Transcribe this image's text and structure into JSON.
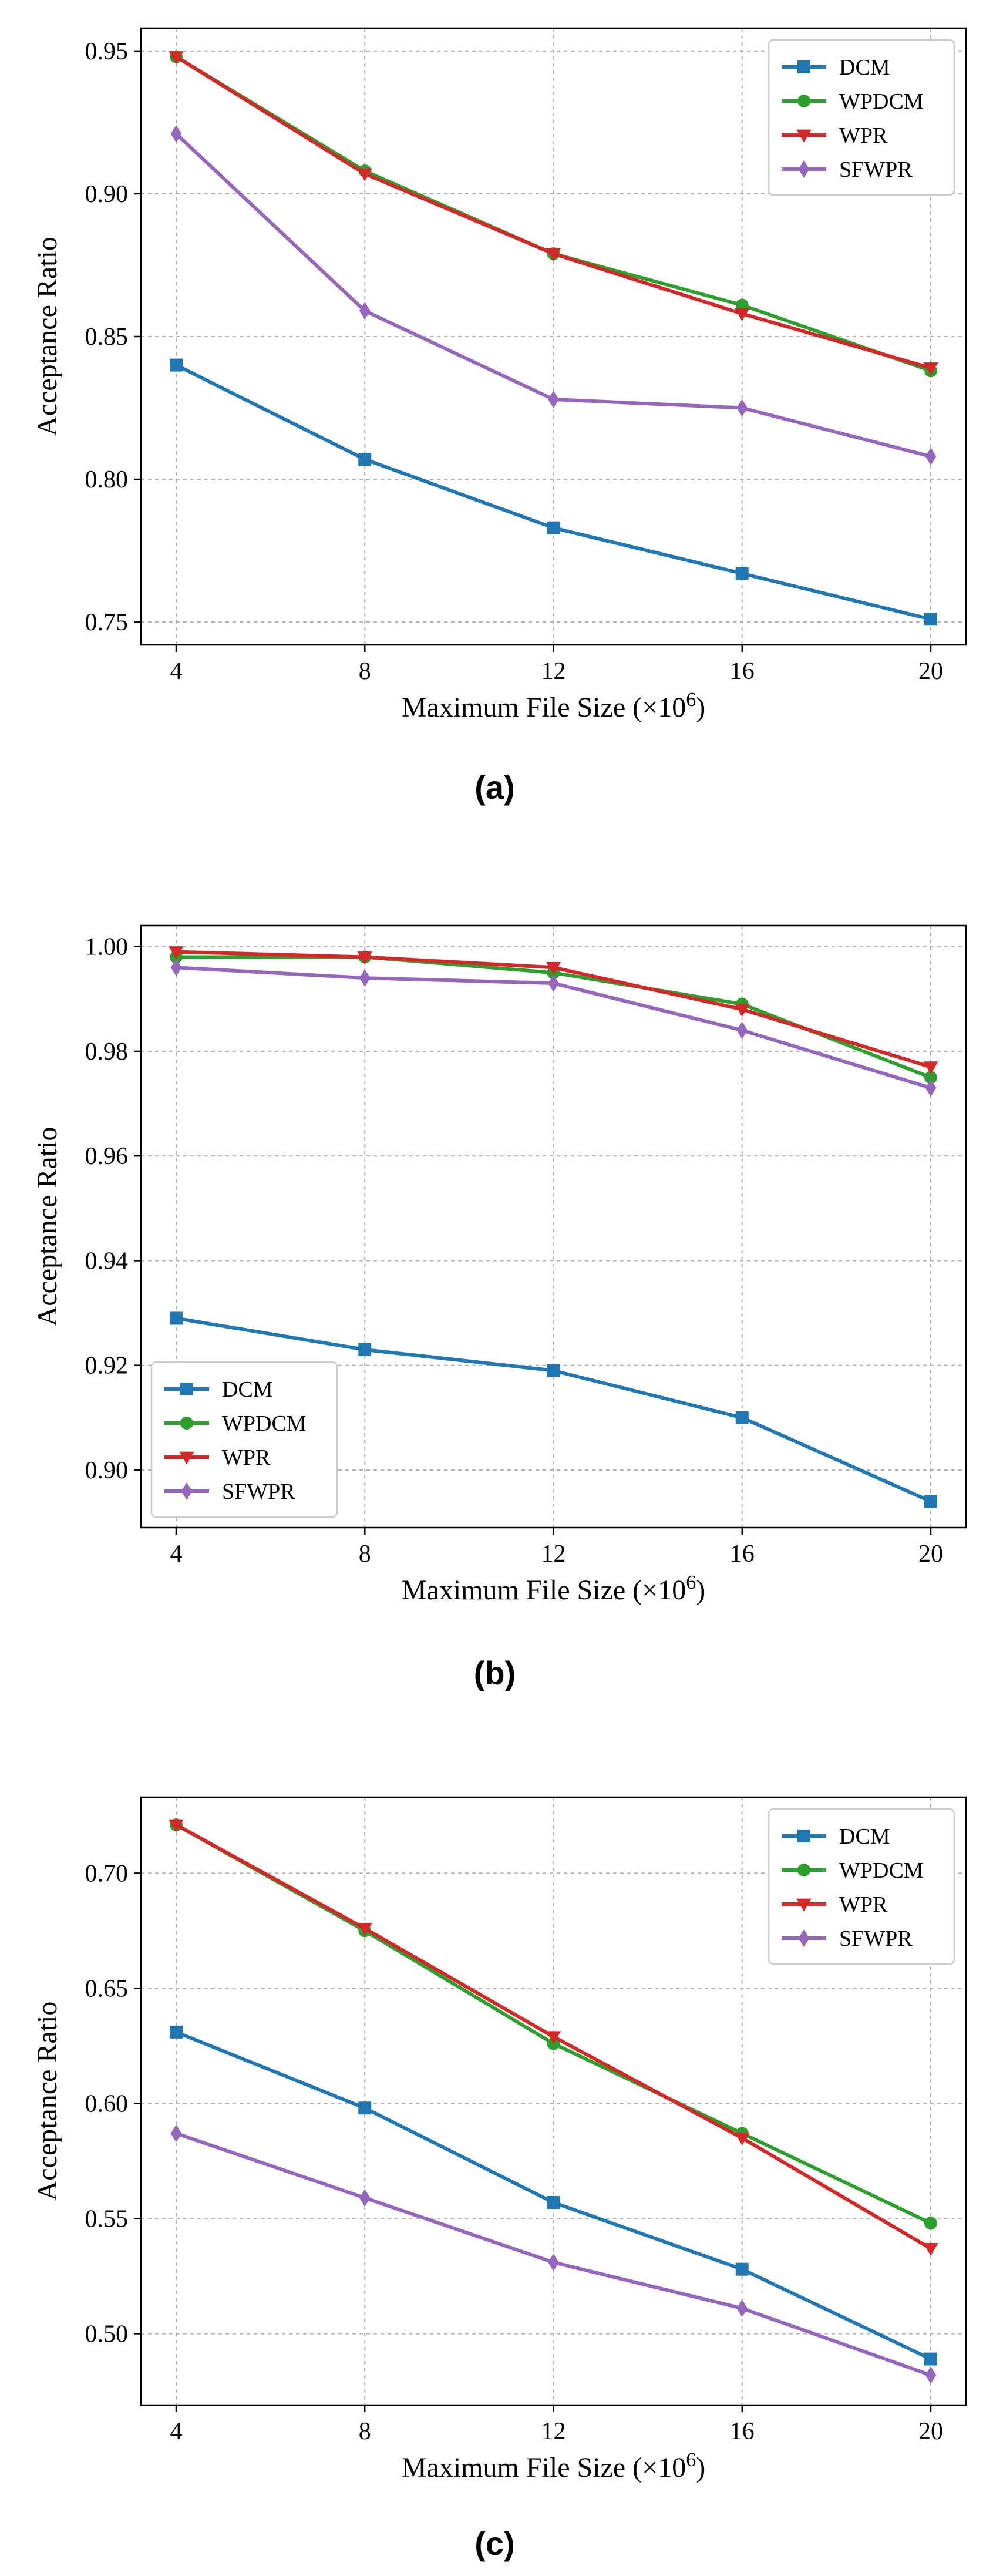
{
  "colors": {
    "DCM": "#1f77b4",
    "WPDCM": "#2ca02c",
    "WPR": "#d62728",
    "SFWPR": "#9467bd"
  },
  "chart_data": [
    {
      "caption": "(a)",
      "type": "line",
      "xlabel": "Maximum File Size (×10",
      "xlabel_exp": "6",
      "xlabel_close": ")",
      "ylabel": "Acceptance Ratio",
      "x": [
        4,
        8,
        12,
        16,
        20
      ],
      "xticks": [
        "4",
        "8",
        "12",
        "16",
        "20"
      ],
      "ylim": [
        0.742,
        0.958
      ],
      "yticks": [
        0.75,
        0.8,
        0.85,
        0.9,
        0.95
      ],
      "ytick_labels": [
        "0.75",
        "0.80",
        "0.85",
        "0.90",
        "0.95"
      ],
      "legend_position": "top-right",
      "grid": true,
      "series": [
        {
          "name": "DCM",
          "marker": "square",
          "values": [
            0.84,
            0.807,
            0.783,
            0.767,
            0.751
          ]
        },
        {
          "name": "WPDCM",
          "marker": "circle",
          "values": [
            0.948,
            0.908,
            0.879,
            0.861,
            0.838
          ]
        },
        {
          "name": "WPR",
          "marker": "triangle-down",
          "values": [
            0.948,
            0.907,
            0.879,
            0.858,
            0.839
          ]
        },
        {
          "name": "SFWPR",
          "marker": "diamond",
          "values": [
            0.921,
            0.859,
            0.828,
            0.825,
            0.808
          ]
        }
      ]
    },
    {
      "caption": "(b)",
      "type": "line",
      "xlabel": "Maximum File Size (×10",
      "xlabel_exp": "6",
      "xlabel_close": ")",
      "ylabel": "Acceptance Ratio",
      "x": [
        4,
        8,
        12,
        16,
        20
      ],
      "xticks": [
        "4",
        "8",
        "12",
        "16",
        "20"
      ],
      "ylim": [
        0.889,
        1.004
      ],
      "yticks": [
        0.9,
        0.92,
        0.94,
        0.96,
        0.98,
        1.0
      ],
      "ytick_labels": [
        "0.90",
        "0.92",
        "0.94",
        "0.96",
        "0.98",
        "1.00"
      ],
      "legend_position": "bottom-left",
      "grid": true,
      "series": [
        {
          "name": "DCM",
          "marker": "square",
          "values": [
            0.929,
            0.923,
            0.919,
            0.91,
            0.894
          ]
        },
        {
          "name": "WPDCM",
          "marker": "circle",
          "values": [
            0.998,
            0.998,
            0.995,
            0.989,
            0.975
          ]
        },
        {
          "name": "WPR",
          "marker": "triangle-down",
          "values": [
            0.999,
            0.998,
            0.996,
            0.988,
            0.977
          ]
        },
        {
          "name": "SFWPR",
          "marker": "diamond",
          "values": [
            0.996,
            0.994,
            0.993,
            0.984,
            0.973
          ]
        }
      ]
    },
    {
      "caption": "(c)",
      "type": "line",
      "xlabel": "Maximum File Size (×10",
      "xlabel_exp": "6",
      "xlabel_close": ")",
      "ylabel": "Acceptance Ratio",
      "x": [
        4,
        8,
        12,
        16,
        20
      ],
      "xticks": [
        "4",
        "8",
        "12",
        "16",
        "20"
      ],
      "ylim": [
        0.469,
        0.733
      ],
      "yticks": [
        0.5,
        0.55,
        0.6,
        0.65,
        0.7
      ],
      "ytick_labels": [
        "0.50",
        "0.55",
        "0.60",
        "0.65",
        "0.70"
      ],
      "legend_position": "top-right",
      "grid": true,
      "series": [
        {
          "name": "DCM",
          "marker": "square",
          "values": [
            0.631,
            0.598,
            0.557,
            0.528,
            0.489
          ]
        },
        {
          "name": "WPDCM",
          "marker": "circle",
          "values": [
            0.721,
            0.675,
            0.626,
            0.587,
            0.548
          ]
        },
        {
          "name": "WPR",
          "marker": "triangle-down",
          "values": [
            0.721,
            0.676,
            0.629,
            0.585,
            0.537
          ]
        },
        {
          "name": "SFWPR",
          "marker": "diamond",
          "values": [
            0.587,
            0.559,
            0.531,
            0.511,
            0.482
          ]
        }
      ]
    }
  ]
}
